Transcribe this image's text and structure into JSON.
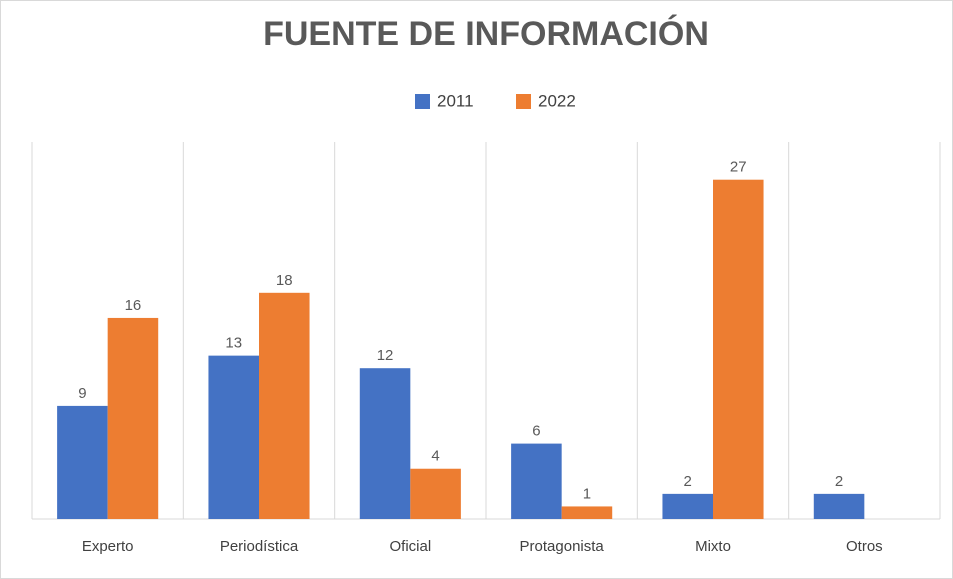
{
  "chart_data": {
    "type": "bar",
    "title": "FUENTE DE INFORMACIÓN",
    "categories": [
      "Experto",
      "Periodística",
      "Oficial",
      "Protagonista",
      "Mixto",
      "Otros"
    ],
    "series": [
      {
        "name": "2011",
        "color": "#4472c4",
        "values": [
          9,
          13,
          12,
          6,
          2,
          2
        ]
      },
      {
        "name": "2022",
        "color": "#ed7d31",
        "values": [
          16,
          18,
          4,
          1,
          27,
          null
        ]
      }
    ],
    "ylim": [
      0,
      30
    ],
    "legend": "top"
  }
}
